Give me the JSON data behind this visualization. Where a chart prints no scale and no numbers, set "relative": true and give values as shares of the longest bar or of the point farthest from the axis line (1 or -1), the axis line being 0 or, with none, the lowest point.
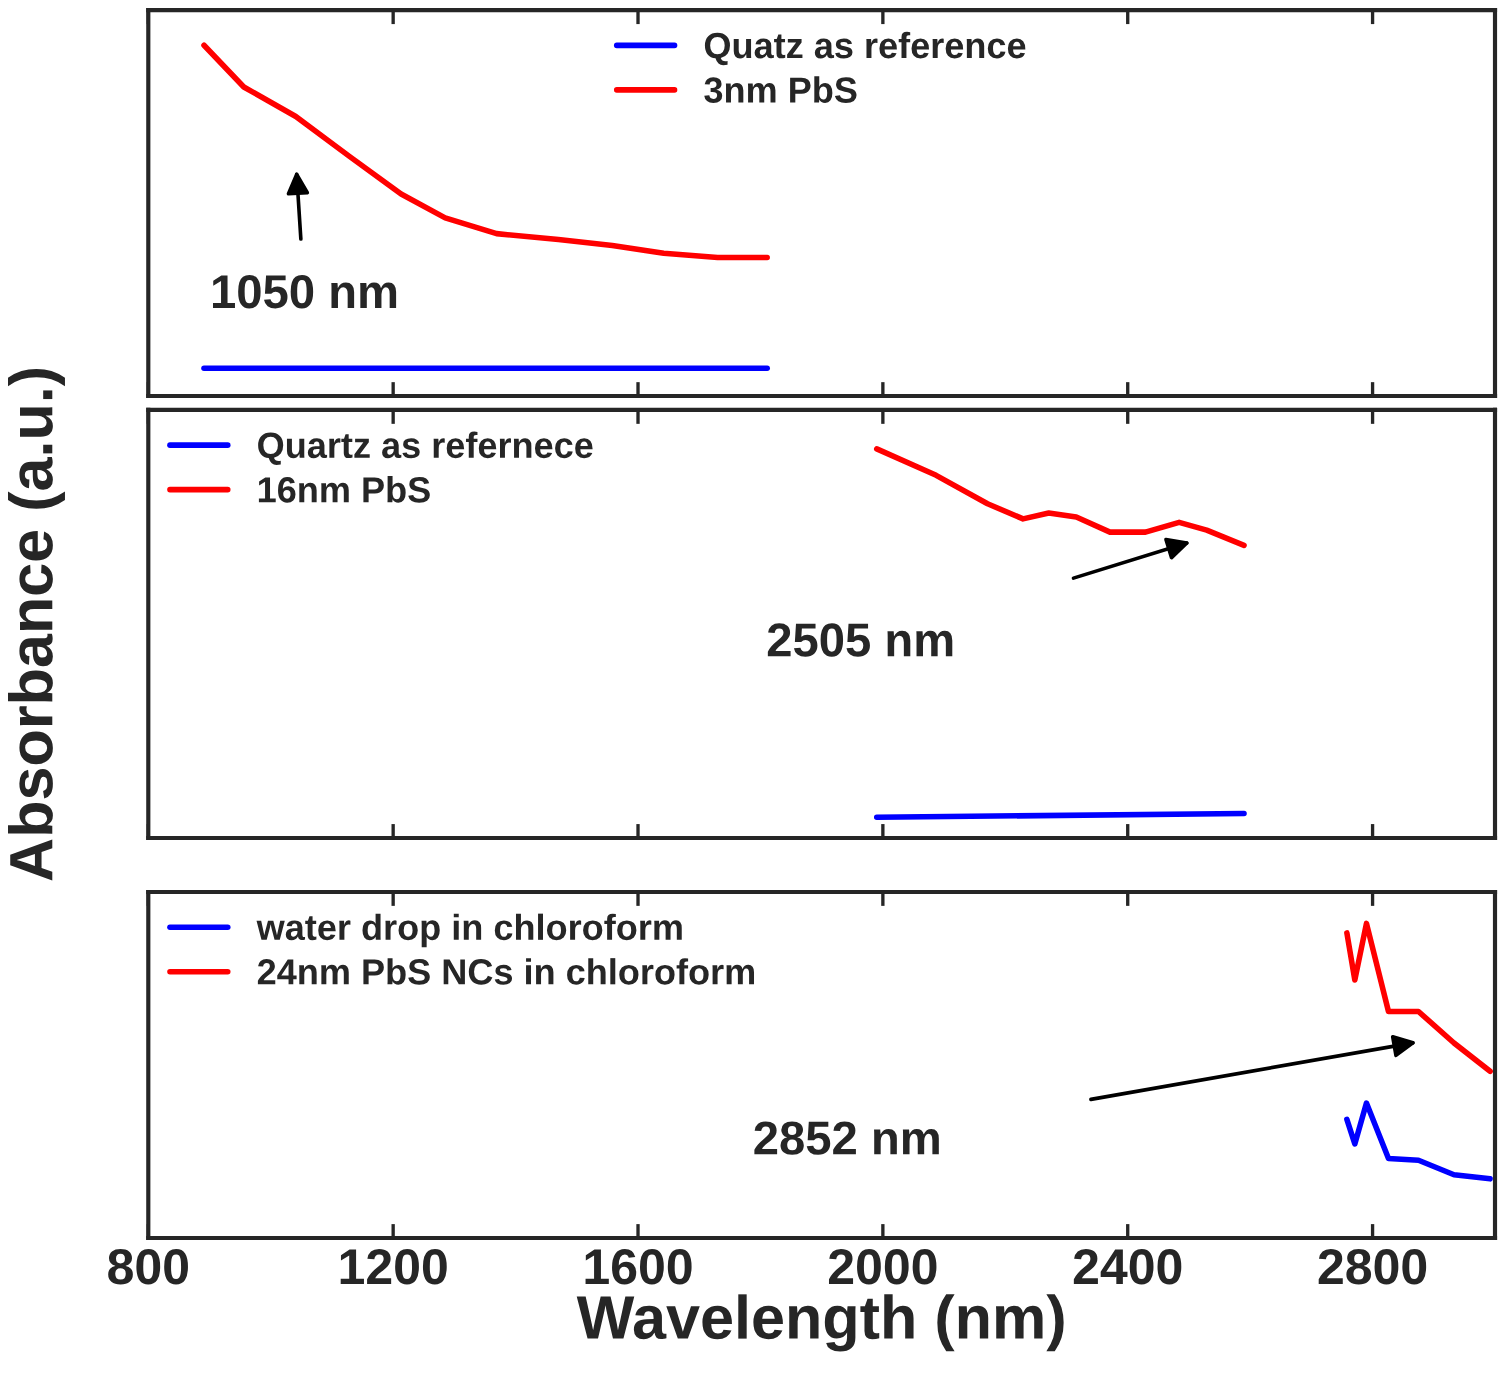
{
  "chart_data": [
    {
      "type": "line",
      "relative": true,
      "xlim": [
        800,
        3000
      ],
      "xticks": [
        {
          "value": 800,
          "label": null
        },
        {
          "value": 1200,
          "label": null
        },
        {
          "value": 1600,
          "label": null
        },
        {
          "value": 2000,
          "label": null
        },
        {
          "value": 2400,
          "label": null
        },
        {
          "value": 2800,
          "label": null
        }
      ],
      "tick_labels": false,
      "legend": "top",
      "grid": false,
      "series": [
        {
          "name": "Quatz as reference",
          "color": "#0000ff",
          "x": [
            891,
            1811
          ],
          "values": [
            0.079,
            0.079
          ]
        },
        {
          "name": "3nm PbS",
          "color": "#ff0000",
          "x": [
            891,
            956,
            1041,
            1128,
            1213,
            1285,
            1369,
            1470,
            1558,
            1642,
            1730,
            1811
          ],
          "values": [
            1,
            0.881,
            0.797,
            0.684,
            0.576,
            0.508,
            0.463,
            0.446,
            0.429,
            0.407,
            0.395,
            0.395
          ]
        }
      ],
      "annotations": [
        "1050 nm"
      ]
    },
    {
      "type": "line",
      "relative": true,
      "xlim": [
        800,
        3000
      ],
      "xticks": [
        {
          "value": 800,
          "label": null
        },
        {
          "value": 1200,
          "label": null
        },
        {
          "value": 1600,
          "label": null
        },
        {
          "value": 2000,
          "label": null
        },
        {
          "value": 2400,
          "label": null
        },
        {
          "value": 2800,
          "label": null
        }
      ],
      "tick_labels": false,
      "legend": "top left",
      "grid": false,
      "ylabel": "Absorbance (a.u.)",
      "series": [
        {
          "name": "Quartz as refernece",
          "color": "#0000ff",
          "x": [
            1990,
            2590
          ],
          "values": [
            0.053,
            0.063
          ]
        },
        {
          "name": "16nm PbS",
          "color": "#ff0000",
          "x": [
            1990,
            2087,
            2171,
            2229,
            2271,
            2316,
            2371,
            2429,
            2484,
            2529,
            2590
          ],
          "values": [
            1,
            0.932,
            0.859,
            0.82,
            0.835,
            0.825,
            0.786,
            0.786,
            0.811,
            0.791,
            0.752
          ]
        }
      ],
      "annotations": [
        "2505 nm"
      ]
    },
    {
      "type": "line",
      "relative": true,
      "xlim": [
        800,
        3000
      ],
      "xticks": [
        800,
        1200,
        1600,
        2000,
        2400,
        2800
      ],
      "tick_labels": "x",
      "legend": "top left",
      "grid": false,
      "xlabel": "Wavelength (nm)",
      "series": [
        {
          "name": "water drop in chloroform",
          "color": "#0000ff",
          "x": [
            2758,
            2771,
            2790,
            2826,
            2875,
            2933,
            2992
          ],
          "values": [
            0.377,
            0.299,
            0.429,
            0.253,
            0.247,
            0.201,
            0.188
          ]
        },
        {
          "name": "24nm PbS NCs in chloroform",
          "color": "#ff0000",
          "x": [
            2758,
            2771,
            2790,
            2826,
            2875,
            2933,
            2992
          ],
          "values": [
            0.97,
            0.82,
            1,
            0.72,
            0.72,
            0.62,
            0.53
          ]
        }
      ],
      "annotations": [
        "2852 nm"
      ]
    }
  ]
}
